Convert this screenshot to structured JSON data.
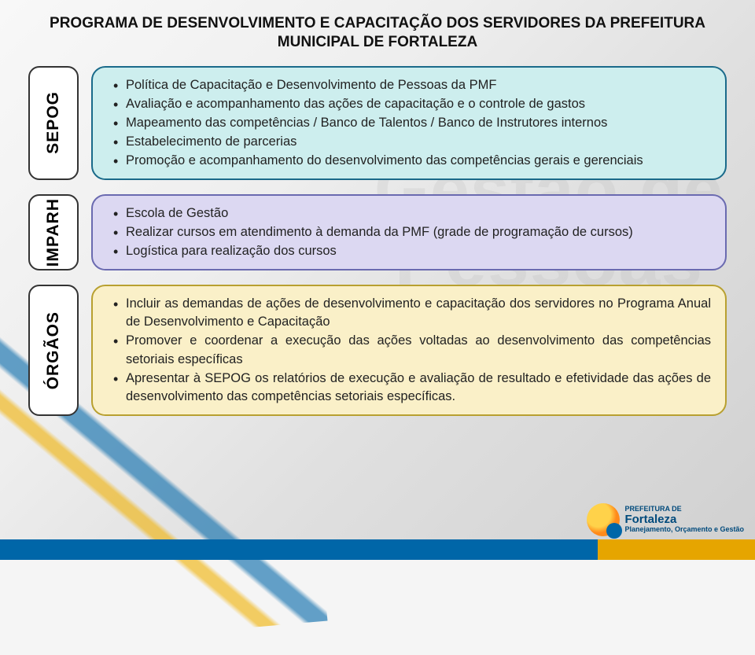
{
  "title_line1": "PROGRAMA DE DESENVOLVIMENTO E CAPACITAÇÃO DOS SERVIDORES DA PREFEITURA",
  "title_line2": "MUNICIPAL DE FORTALEZA",
  "watermark_line1": "Gestão de",
  "watermark_line2": "Pessoas",
  "sections": {
    "sepog": {
      "label": "SEPOG",
      "items": [
        "Política de Capacitação e Desenvolvimento de Pessoas da PMF",
        "Avaliação e acompanhamento das ações de capacitação e o controle de gastos",
        "Mapeamento das competências / Banco de Talentos / Banco de Instrutores internos",
        "Estabelecimento de parcerias",
        "Promoção e acompanhamento do desenvolvimento das competências gerais e gerenciais"
      ]
    },
    "imparh": {
      "label": "IMPARH",
      "items": [
        "Escola de Gestão",
        "Realizar cursos em atendimento à demanda da PMF (grade de programação de cursos)",
        "Logística para realização dos cursos"
      ]
    },
    "orgaos": {
      "label": "ÓRGÃOS",
      "items": [
        "Incluir as demandas de ações de desenvolvimento e capacitação dos servidores no Programa Anual de Desenvolvimento e Capacitação",
        "Promover e coordenar a execução das ações voltadas ao desenvolvimento das competências setoriais específicas",
        "Apresentar à SEPOG os relatórios de execução e avaliação de resultado e efetividade das ações de desenvolvimento das competências setoriais específicas."
      ]
    }
  },
  "logo": {
    "line1": "PREFEITURA DE",
    "brand": "Fortaleza",
    "line2": "Planejamento, Orçamento e Gestão"
  },
  "colors": {
    "blue_border": "#1a6a8a",
    "blue_fill": "#cdeeee",
    "lilac_border": "#6a6ab0",
    "lilac_fill": "#dcd8f2",
    "cream_border": "#b8a030",
    "cream_fill": "#faf0c8",
    "footer_blue": "#0066a8",
    "footer_yellow": "#e6a500"
  }
}
